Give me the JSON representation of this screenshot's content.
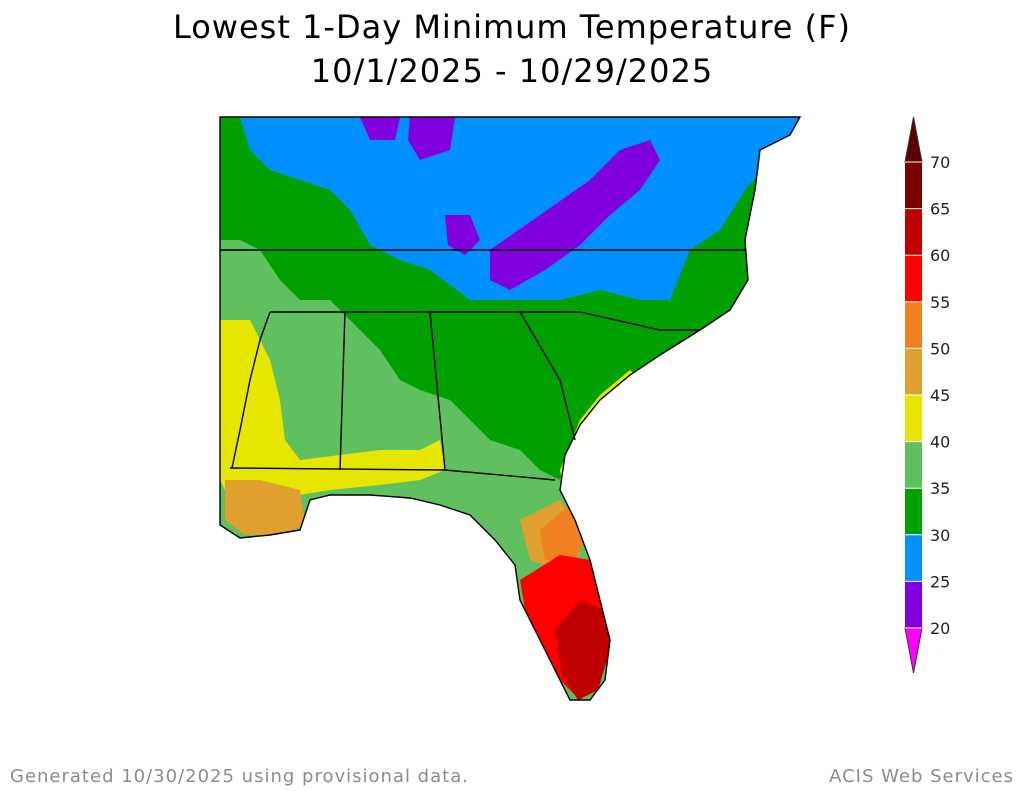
{
  "title": {
    "line1": "Lowest 1-Day Minimum Temperature (F)",
    "line2": "10/1/2025 - 10/29/2025"
  },
  "legend": {
    "bins": [
      {
        "label": "70",
        "color": "#7a0000"
      },
      {
        "label": "65",
        "color": "#c00000"
      },
      {
        "label": "60",
        "color": "#ff0000"
      },
      {
        "label": "55",
        "color": "#f08020"
      },
      {
        "label": "50",
        "color": "#e0a030"
      },
      {
        "label": "45",
        "color": "#e6e600"
      },
      {
        "label": "40",
        "color": "#60c060"
      },
      {
        "label": "35",
        "color": "#00a000"
      },
      {
        "label": "30",
        "color": "#0090ff"
      },
      {
        "label": "25",
        "color": "#8000e0"
      },
      {
        "label": "20",
        "color": "#c000c0"
      }
    ],
    "min_color": "#ff00ff",
    "max_color": "#5a0000"
  },
  "footer": {
    "left": "Generated 10/30/2025 using provisional data.",
    "right": "ACIS Web Services"
  }
}
